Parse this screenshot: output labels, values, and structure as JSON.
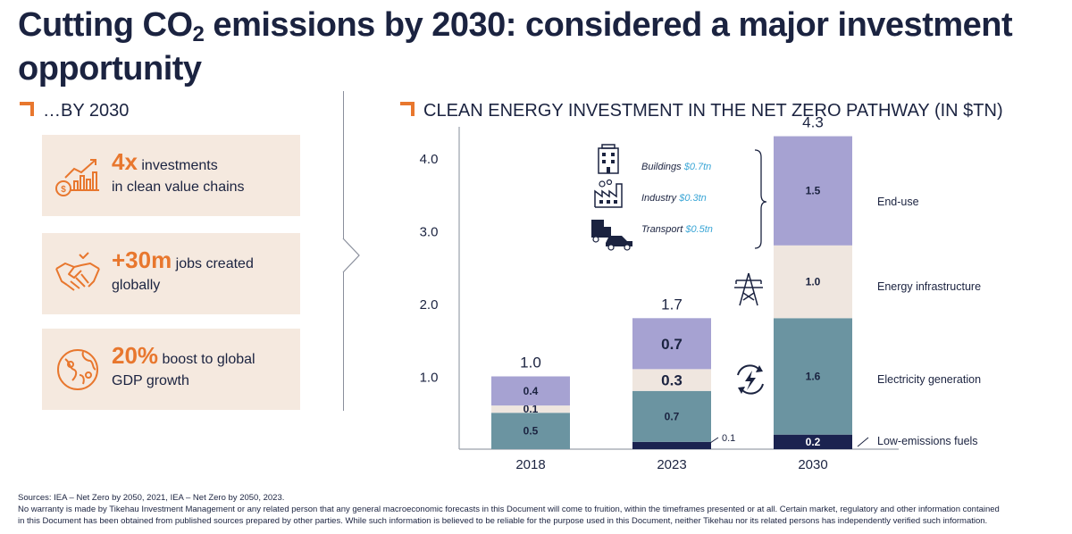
{
  "title": {
    "line1_pre": "Cutting CO",
    "sub": "2",
    "line1_post": " emissions by 2030: considered a major investment",
    "line2": "opportunity"
  },
  "left": {
    "heading": "…BY 2030",
    "cards": [
      {
        "big": "4x",
        "rest": " investments",
        "line2": "in clean value chains",
        "icon": "growth-chart-icon"
      },
      {
        "big": "+30m",
        "rest": " jobs created",
        "line2": "globally",
        "icon": "handshake-icon"
      },
      {
        "big": "20%",
        "rest": " boost to global",
        "line2": "GDP growth",
        "icon": "globe-icon"
      }
    ]
  },
  "right": {
    "heading": "CLEAN ENERGY INVESTMENT IN THE NET ZERO PATHWAY (IN $TN)"
  },
  "chart_data": {
    "type": "bar",
    "stacked": true,
    "title": "CLEAN ENERGY INVESTMENT IN THE NET ZERO PATHWAY (IN $TN)",
    "categories": [
      "2018",
      "2023",
      "2030"
    ],
    "ylim": [
      0,
      4.4
    ],
    "yticks": [
      "1.0",
      "2.0",
      "3.0",
      "4.0"
    ],
    "ytick_values": [
      1.0,
      2.0,
      3.0,
      4.0
    ],
    "totals": [
      "1.0",
      "1.7",
      "4.3"
    ],
    "series": [
      {
        "name": "Low-emissions fuels",
        "values": [
          0,
          0.1,
          0.2
        ],
        "labels": [
          "",
          "0.1",
          "0.2"
        ],
        "color": "#1b2350",
        "label_color": "#ffffff"
      },
      {
        "name": "Electricity generation",
        "values": [
          0.5,
          0.7,
          1.6
        ],
        "labels": [
          "0.5",
          "0.7",
          "1.6"
        ],
        "color": "#6b94a1",
        "label_color": "#1b2340"
      },
      {
        "name": "Energy infrastructure",
        "values": [
          0.1,
          0.3,
          1.0
        ],
        "labels": [
          "0.1",
          "0.3",
          "1.0"
        ],
        "color": "#efe6df",
        "label_color": "#1b2340"
      },
      {
        "name": "End-use",
        "values": [
          0.4,
          0.7,
          1.5
        ],
        "labels": [
          "0.4",
          "0.7",
          "1.5"
        ],
        "color": "#a6a2d2",
        "label_color": "#1b2340"
      }
    ],
    "enduse_breakdown": [
      {
        "name": "Buildings",
        "value": "$0.7tn",
        "icon": "building-icon"
      },
      {
        "name": "Industry",
        "value": "$0.3tn",
        "icon": "factory-icon"
      },
      {
        "name": "Transport",
        "value": "$0.5tn",
        "icon": "truck-car-icon"
      }
    ],
    "grid": false,
    "legend": "right"
  },
  "sources": {
    "line1": "Sources: IEA – Net Zero by 2050, 2021, IEA – Net Zero by 2050, 2023.",
    "line2": "No warranty is made by Tikehau Investment Management or any related person that any general macroeconomic forecasts in this Document will come to fruition, within the timeframes presented or at all.  Certain market, regulatory and other information contained",
    "line3": "in this Document has been obtained from published sources prepared by other parties.  While such information is believed to be reliable for the purpose used in this Document, neither Tikehau nor its related persons has independently verified such information."
  }
}
